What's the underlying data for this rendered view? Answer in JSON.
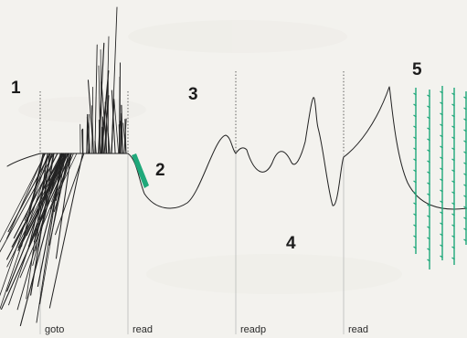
{
  "colors": {
    "background": "#f3f2ee",
    "ink": "#222222",
    "accent": "#1fa87a"
  },
  "labels": {
    "n1": "1",
    "n2": "2",
    "n3": "3",
    "n4": "4",
    "n5": "5"
  },
  "commands": {
    "goto": "goto",
    "read1": "read",
    "readp": "readp",
    "read2": "read"
  }
}
